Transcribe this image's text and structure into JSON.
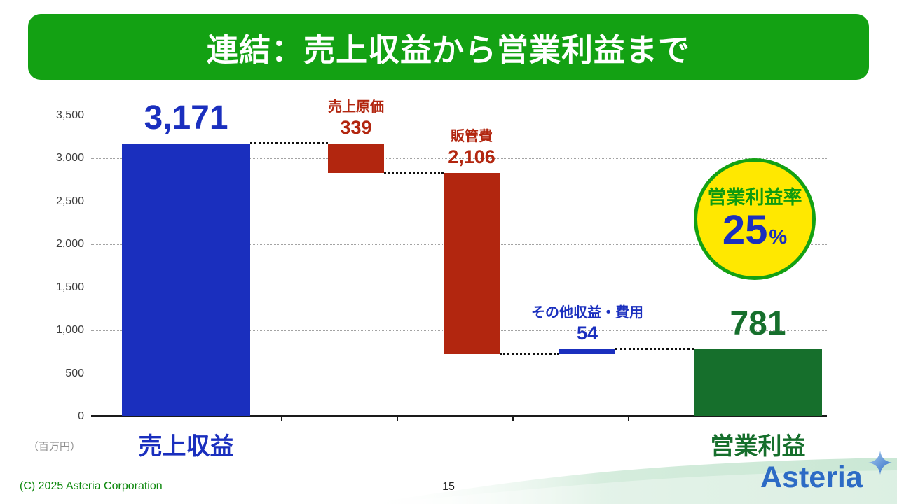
{
  "slide": {
    "title": "連結：売上収益から営業利益まで",
    "unit_label": "（百万円）",
    "badge": {
      "title": "営業利益率",
      "value": "25",
      "unit": "%"
    },
    "footer": {
      "copyright": "(C) 2025 Asteria Corporation",
      "page_number": "15",
      "logo_text": "Asteria"
    }
  },
  "colors": {
    "header_green": "#13a113",
    "bar_blue": "#1a2fbe",
    "bar_red": "#b2260f",
    "bar_green": "#166f2c",
    "badge_yellow": "#ffe800",
    "badge_border_green": "#13a113",
    "badge_title_green": "#0f9b0f",
    "badge_value_blue": "#1a2fbe",
    "footer_green": "#0c870c",
    "logo_blue": "#2d6bc5"
  },
  "chart_data": {
    "type": "bar",
    "subtype": "waterfall",
    "title": "連結：売上収益から営業利益まで",
    "unit": "百万円",
    "ylim": [
      0,
      3500
    ],
    "ytick_step": 500,
    "ytick_labels": [
      "0",
      "500",
      "1,000",
      "1,500",
      "2,000",
      "2,500",
      "3,000",
      "3,500"
    ],
    "grid": "dotted horizontal",
    "bars": [
      {
        "name": "売上収益",
        "value": 3171,
        "value_label": "3,171",
        "from": 0,
        "to": 3171,
        "color_key": "bar_blue",
        "label_style": "big",
        "axis_label": "売上収益",
        "axis_label_color_key": "bar_blue"
      },
      {
        "name": "売上原価",
        "value": 339,
        "value_label": "339",
        "from": 2832,
        "to": 3171,
        "color_key": "bar_red",
        "label_style": "stacked"
      },
      {
        "name": "販管費",
        "value": 2106,
        "value_label": "2,106",
        "from": 726,
        "to": 2832,
        "color_key": "bar_red",
        "label_style": "stacked"
      },
      {
        "name": "その他収益・費用",
        "value": 54,
        "value_label": "54",
        "from": 727,
        "to": 781,
        "color_key": "bar_blue",
        "label_style": "stacked"
      },
      {
        "name": "営業利益",
        "value": 781,
        "value_label": "781",
        "from": 0,
        "to": 781,
        "color_key": "bar_green",
        "label_style": "big",
        "axis_label": "営業利益",
        "axis_label_color_key": "bar_green"
      }
    ],
    "connectors": [
      {
        "value": 3171,
        "from_bar": 0,
        "to_bar": 1
      },
      {
        "value": 2832,
        "from_bar": 1,
        "to_bar": 2
      },
      {
        "value": 726,
        "from_bar": 2,
        "to_bar": 3
      },
      {
        "value": 781,
        "from_bar": 3,
        "to_bar": 4
      }
    ],
    "annotation": {
      "label": "営業利益率",
      "value_percent": 25
    }
  }
}
